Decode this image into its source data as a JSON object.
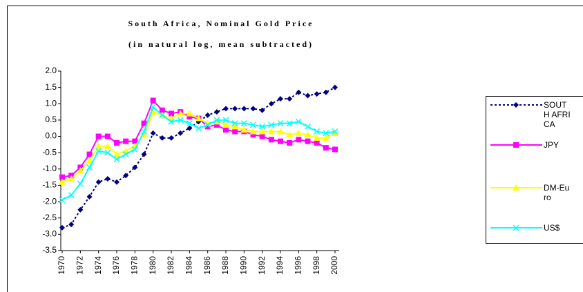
{
  "chart_data": {
    "type": "line",
    "title": "South Africa, Nominal Gold Price",
    "subtitle": "(in natural log, mean subtracted)",
    "x": [
      1970,
      1971,
      1972,
      1973,
      1974,
      1975,
      1976,
      1977,
      1978,
      1979,
      1980,
      1981,
      1982,
      1983,
      1984,
      1985,
      1986,
      1987,
      1988,
      1989,
      1990,
      1991,
      1992,
      1993,
      1994,
      1995,
      1996,
      1997,
      1998,
      1999,
      2000
    ],
    "xlim": [
      1970,
      2000
    ],
    "xticks": [
      1970,
      1972,
      1974,
      1976,
      1978,
      1980,
      1982,
      1984,
      1986,
      1988,
      1990,
      1992,
      1994,
      1996,
      1998,
      2000
    ],
    "ylim": [
      -3.5,
      2.0
    ],
    "yticks": [
      {
        "value": -3.5,
        "label": "-3.5"
      },
      {
        "value": -3.0,
        "label": "-3.0"
      },
      {
        "value": -2.5,
        "label": "-2.5"
      },
      {
        "value": -2.0,
        "label": "-2.0"
      },
      {
        "value": -1.5,
        "label": "-1.5"
      },
      {
        "value": -1.0,
        "label": "-1.0"
      },
      {
        "value": -0.5,
        "label": "-0.5"
      },
      {
        "value": 0,
        "label": "0.0"
      },
      {
        "value": 0.5,
        "label": "0.5"
      },
      {
        "value": 1.0,
        "label": "1.0"
      },
      {
        "value": 1.5,
        "label": "1.5"
      },
      {
        "value": 2.0,
        "label": "2.0"
      }
    ],
    "series": [
      {
        "name": "SOUTH AFRICA",
        "color": "#000080",
        "marker": "diamond",
        "line_style": "dashed",
        "values": [
          -2.8,
          -2.7,
          -2.25,
          -1.85,
          -1.4,
          -1.3,
          -1.4,
          -1.2,
          -0.95,
          -0.55,
          0.1,
          -0.05,
          -0.05,
          0.1,
          0.25,
          0.45,
          0.65,
          0.75,
          0.85,
          0.85,
          0.85,
          0.85,
          0.8,
          1.0,
          1.15,
          1.15,
          1.35,
          1.25,
          1.3,
          1.35,
          1.5
        ]
      },
      {
        "name": "JPY",
        "color": "#ff00ff",
        "marker": "square",
        "line_style": "solid",
        "values": [
          -1.25,
          -1.2,
          -0.95,
          -0.55,
          0.0,
          0.0,
          -0.2,
          -0.15,
          -0.15,
          0.4,
          1.1,
          0.8,
          0.7,
          0.75,
          0.6,
          0.55,
          0.3,
          0.35,
          0.2,
          0.15,
          0.15,
          0.05,
          0.0,
          -0.1,
          -0.15,
          -0.2,
          -0.1,
          -0.15,
          -0.2,
          -0.35,
          -0.4
        ]
      },
      {
        "name": "DM-Euro",
        "color": "#ffff00",
        "marker": "triangle",
        "line_style": "solid",
        "values": [
          -1.4,
          -1.3,
          -1.05,
          -0.75,
          -0.3,
          -0.3,
          -0.55,
          -0.45,
          -0.3,
          0.05,
          0.75,
          0.65,
          0.55,
          0.7,
          0.7,
          0.55,
          0.4,
          0.45,
          0.35,
          0.3,
          0.2,
          0.15,
          0.15,
          0.15,
          0.15,
          0.05,
          0.1,
          0.05,
          -0.05,
          -0.05,
          0.1
        ]
      },
      {
        "name": "US$",
        "color": "#00ffff",
        "marker": "x",
        "line_style": "solid",
        "values": [
          -1.95,
          -1.8,
          -1.45,
          -0.95,
          -0.45,
          -0.5,
          -0.7,
          -0.55,
          -0.4,
          0.15,
          0.9,
          0.65,
          0.45,
          0.5,
          0.4,
          0.25,
          0.35,
          0.5,
          0.5,
          0.4,
          0.4,
          0.35,
          0.3,
          0.35,
          0.4,
          0.4,
          0.45,
          0.3,
          0.15,
          0.1,
          0.15
        ]
      }
    ]
  }
}
